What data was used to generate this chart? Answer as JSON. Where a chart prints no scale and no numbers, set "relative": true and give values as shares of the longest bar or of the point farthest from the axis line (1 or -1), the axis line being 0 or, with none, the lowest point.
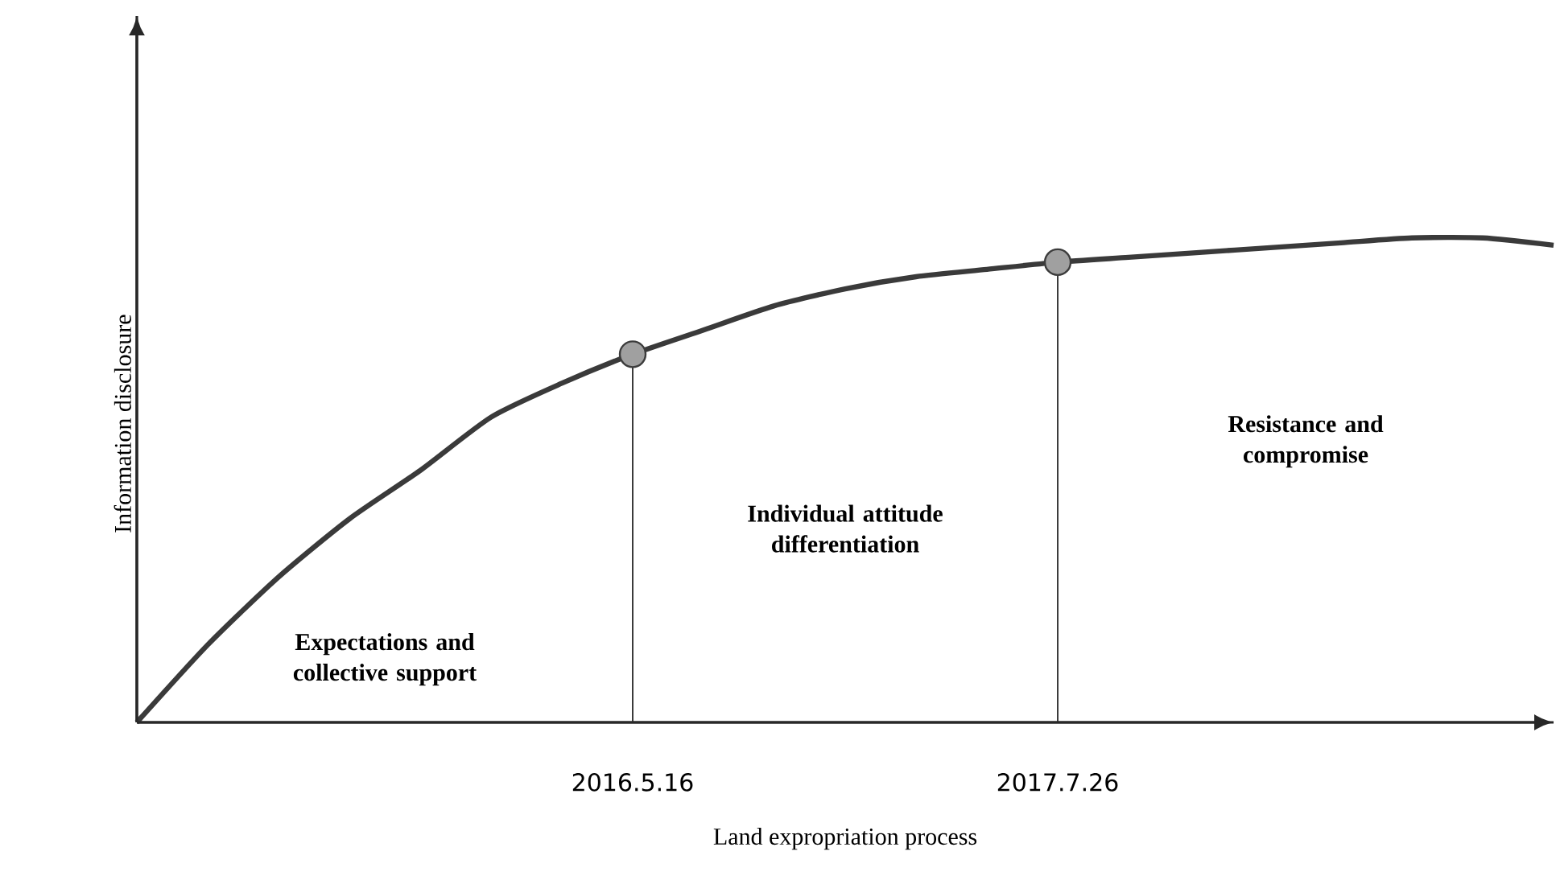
{
  "chart_data": {
    "type": "line",
    "relative": true,
    "xlabel": "Land expropriation process",
    "ylabel": "Information disclosure",
    "categories": [
      null,
      null,
      null,
      null,
      null,
      null,
      null,
      "2016.5.16",
      null,
      null,
      null,
      null,
      null,
      "2017.7.26",
      null,
      null,
      null,
      null,
      null,
      null,
      null
    ],
    "tick_labels": "x",
    "grid": false,
    "series": [
      {
        "color": "#3a3a3a",
        "marker": "none",
        "values": [
          0,
          0.16,
          0.3,
          0.42,
          0.52,
          0.63,
          0.7,
          0.76,
          0.81,
          0.86,
          0.895,
          0.92,
          0.935,
          0.95,
          0.96,
          0.97,
          0.98,
          0.99,
          1.0,
          1.0,
          0.985
        ]
      },
      {
        "type": "scatter",
        "color": "#a0a0a0",
        "marker": "circle",
        "values": [
          null,
          null,
          null,
          null,
          null,
          null,
          null,
          0.76,
          null,
          null,
          null,
          null,
          null,
          0.95,
          null,
          null,
          null,
          null,
          null,
          null,
          null
        ]
      }
    ],
    "ref_lines": [
      {
        "axis": "x",
        "value": "2016.5.16",
        "color": "#3a3a3a"
      },
      {
        "axis": "x",
        "value": "2017.7.26",
        "color": "#3a3a3a"
      }
    ],
    "annotations": [
      "Expectations and collective support",
      "Individual attitude differentiation",
      "Resistance and compromise"
    ]
  }
}
